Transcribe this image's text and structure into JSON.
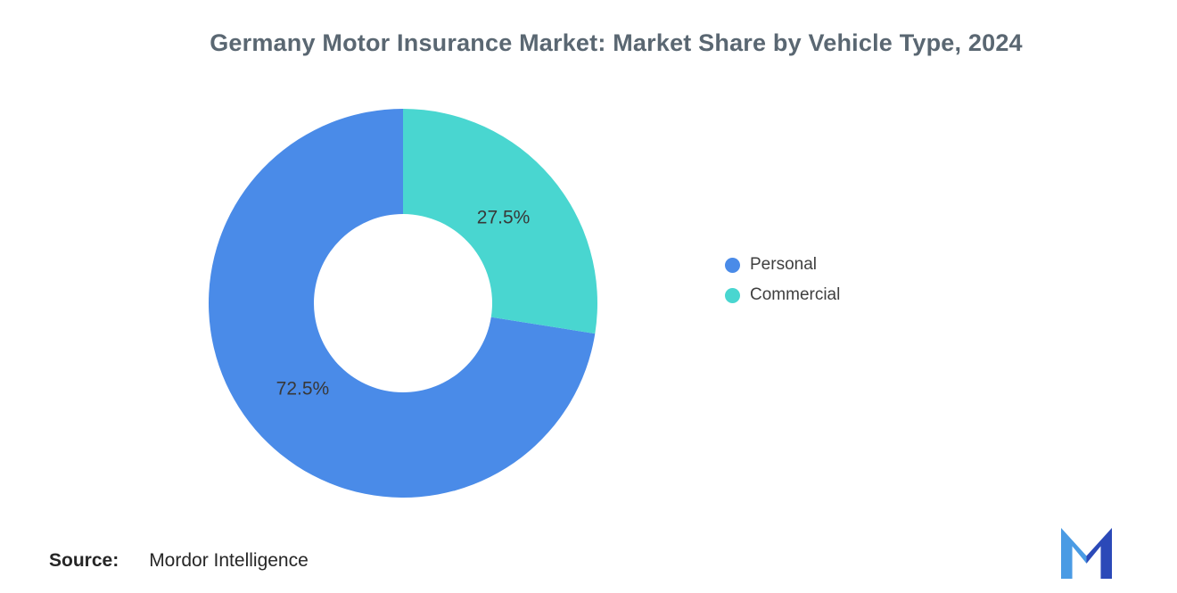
{
  "title": "Germany Motor Insurance Market: Market Share by Vehicle Type, 2024",
  "chart_data": {
    "type": "pie",
    "subtype": "donut",
    "title": "Germany Motor Insurance Market: Market Share by Vehicle Type, 2024",
    "unit": "%",
    "slices": [
      {
        "label": "Personal",
        "value": 72.5,
        "display": "72.5%",
        "color": "#4A8BE8"
      },
      {
        "label": "Commercial",
        "value": 27.5,
        "display": "27.5%",
        "color": "#49D6D0"
      }
    ],
    "rotation_deg": 99,
    "inner_radius_ratio": 0.46,
    "legend_position": "right",
    "data_label_color": "#383838",
    "grid": false
  },
  "legend": {
    "items": [
      {
        "label": "Personal",
        "color": "#4A8BE8"
      },
      {
        "label": "Commercial",
        "color": "#49D6D0"
      }
    ]
  },
  "footer": {
    "source_label": "Source:",
    "source_value": "Mordor Intelligence",
    "logo_name": "mordor-intelligence-logo",
    "logo_colors": {
      "light": "#4A9BE4",
      "dark": "#2B49B8"
    }
  }
}
